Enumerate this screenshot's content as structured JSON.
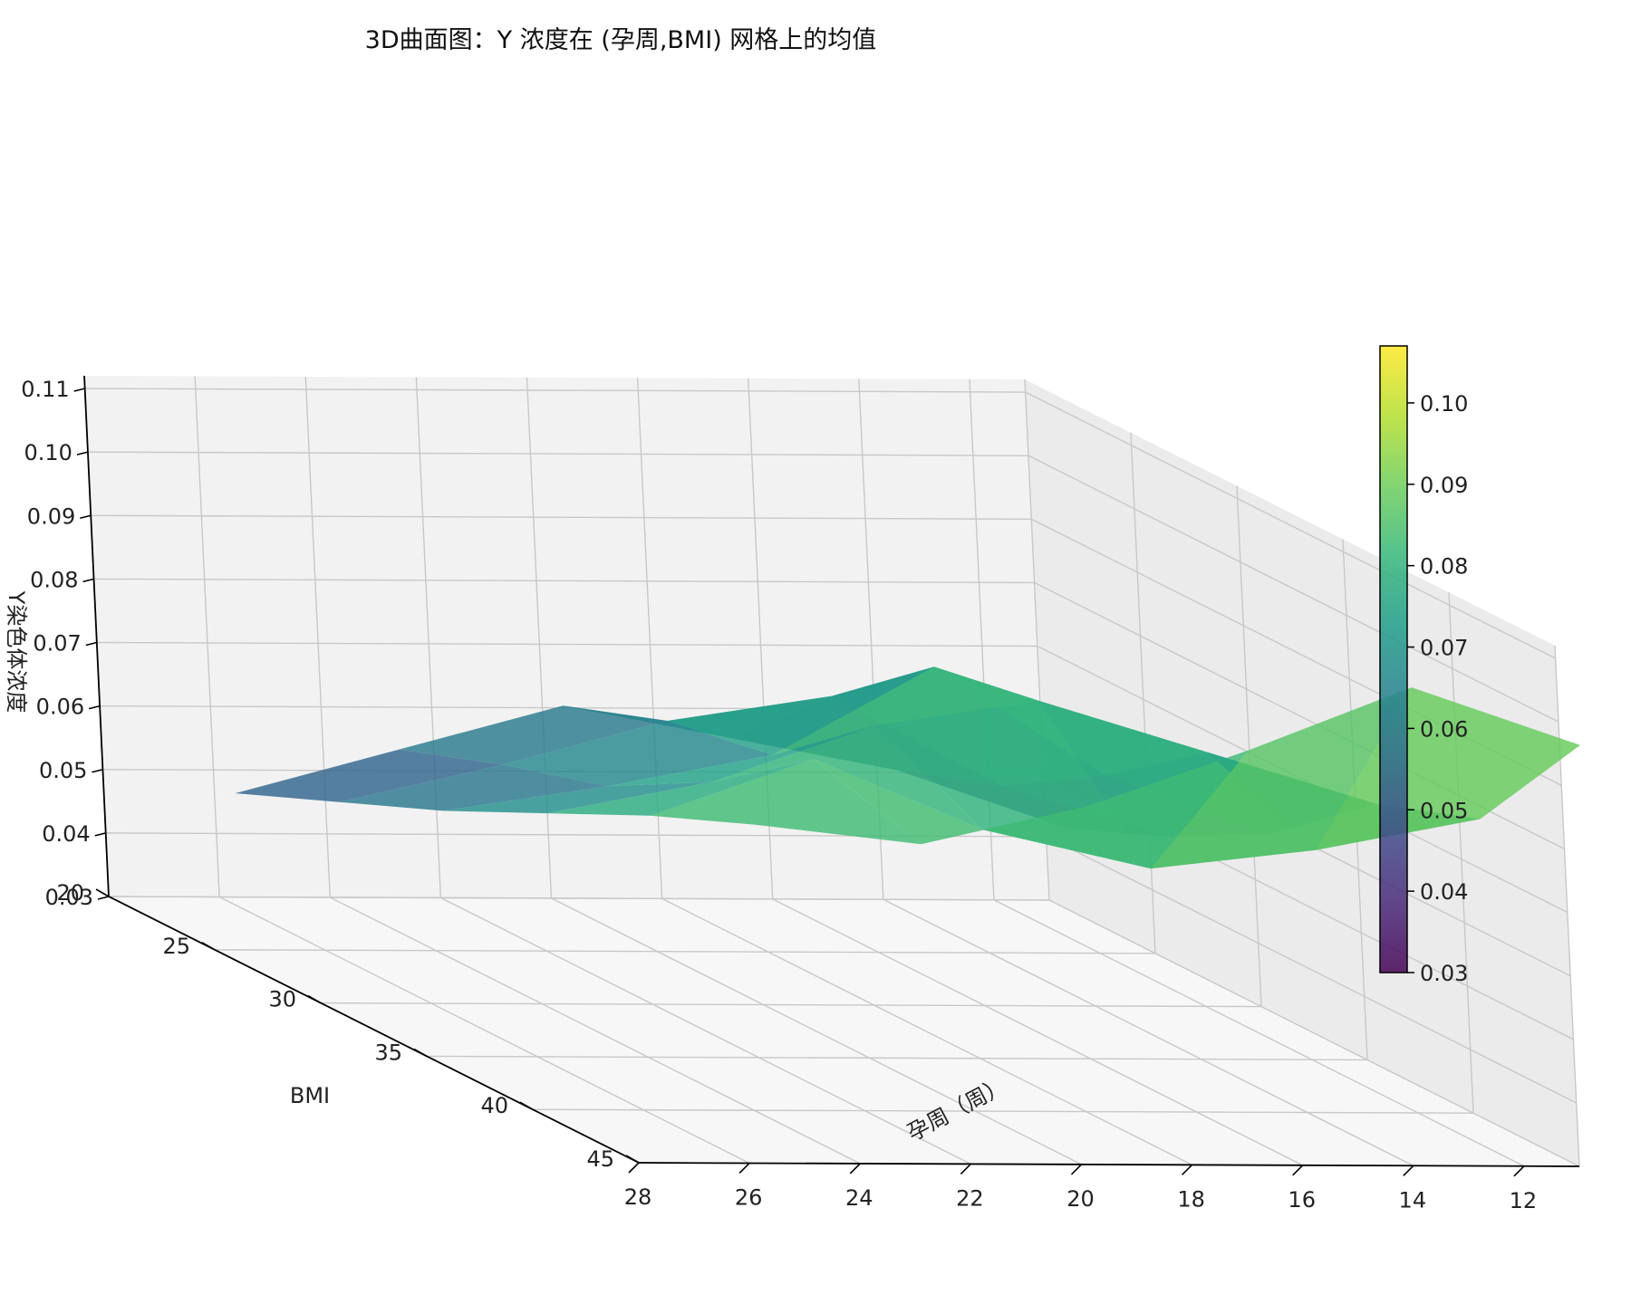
{
  "chart_data": {
    "type": "surface3d",
    "title": "3D曲面图：Y 浓度在 (孕周,BMI) 网格上的均值",
    "xlabel": "孕周（周）",
    "ylabel": "BMI",
    "zlabel": "Y染色体浓度",
    "x_ticks": [
      "12",
      "14",
      "16",
      "18",
      "20",
      "22",
      "24",
      "26",
      "28"
    ],
    "y_ticks": [
      "20",
      "25",
      "30",
      "35",
      "40",
      "45"
    ],
    "z_ticks": [
      "0.03",
      "0.04",
      "0.05",
      "0.06",
      "0.07",
      "0.08",
      "0.09",
      "0.10",
      "0.11"
    ],
    "colorbar_ticks": [
      "0.03",
      "0.04",
      "0.05",
      "0.06",
      "0.07",
      "0.08",
      "0.09",
      "0.10"
    ],
    "colormap": "viridis",
    "zlim": [
      0.03,
      0.112
    ],
    "xlim": [
      11,
      28
    ],
    "ylim": [
      20,
      45
    ],
    "clim": [
      0.03,
      0.107
    ],
    "grid": true,
    "x_values": [
      11,
      14,
      17,
      20,
      23,
      26
    ],
    "y_values": [
      21,
      26,
      31,
      36,
      41,
      46
    ],
    "z_matrix": [
      [
        0.043,
        0.05,
        0.059,
        0.072,
        0.078,
        0.098
      ],
      [
        0.052,
        0.058,
        0.068,
        0.08,
        0.073,
        0.107
      ],
      [
        0.057,
        0.072,
        0.085,
        0.088,
        0.07,
        0.097
      ],
      [
        0.062,
        0.068,
        0.071,
        0.084,
        0.076,
        0.088
      ],
      [
        0.055,
        0.061,
        0.066,
        0.075,
        0.087,
        0.082
      ],
      [
        0.048,
        0.055,
        0.062,
        0.07,
        0.078,
        0.085
      ]
    ]
  }
}
